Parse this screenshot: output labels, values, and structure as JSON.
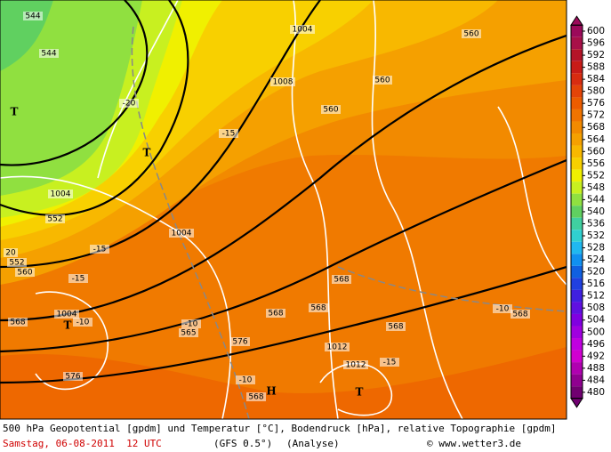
{
  "map": {
    "contour_labels": [
      "544",
      "544",
      "1004",
      "1008",
      "560",
      "560",
      "560",
      "-20",
      "-15",
      "T",
      "T",
      "1004",
      "552",
      "1004",
      "20",
      "552",
      "-15",
      "560",
      "-15",
      "568",
      "568",
      "1004",
      "-10",
      "T",
      "-10",
      "565",
      "568",
      "568",
      "568",
      "-10",
      "568",
      "576",
      "1012",
      "1012",
      "576",
      "-10",
      "568",
      "H",
      "T",
      "-15"
    ],
    "colorbar": {
      "levels": [
        {
          "value": 600,
          "color": "#9b0a5a"
        },
        {
          "value": 596,
          "color": "#a81048"
        },
        {
          "value": 592,
          "color": "#b41428"
        },
        {
          "value": 588,
          "color": "#c81c18"
        },
        {
          "value": 584,
          "color": "#d82c10"
        },
        {
          "value": 580,
          "color": "#e44408"
        },
        {
          "value": 576,
          "color": "#ec5c00"
        },
        {
          "value": 572,
          "color": "#f07400"
        },
        {
          "value": 568,
          "color": "#f28a00"
        },
        {
          "value": 564,
          "color": "#f5a000"
        },
        {
          "value": 560,
          "color": "#f8b800"
        },
        {
          "value": 556,
          "color": "#f8d000"
        },
        {
          "value": 552,
          "color": "#f0f000"
        },
        {
          "value": 548,
          "color": "#c8f020"
        },
        {
          "value": 544,
          "color": "#90e040"
        },
        {
          "value": 540,
          "color": "#60d060"
        },
        {
          "value": 536,
          "color": "#40d0a0"
        },
        {
          "value": 532,
          "color": "#30d0d0"
        },
        {
          "value": 528,
          "color": "#20b8f0"
        },
        {
          "value": 524,
          "color": "#1090f0"
        },
        {
          "value": 520,
          "color": "#1060e0"
        },
        {
          "value": 516,
          "color": "#2040e0"
        },
        {
          "value": 512,
          "color": "#4020e0"
        },
        {
          "value": 508,
          "color": "#6010e0"
        },
        {
          "value": 504,
          "color": "#8000e0"
        },
        {
          "value": 500,
          "color": "#a000e0"
        },
        {
          "value": 496,
          "color": "#c000e0"
        },
        {
          "value": 492,
          "color": "#d000d0"
        },
        {
          "value": 488,
          "color": "#b000b0"
        },
        {
          "value": 484,
          "color": "#900090"
        },
        {
          "value": 480,
          "color": "#700070"
        }
      ]
    }
  },
  "footer": {
    "description": "500 hPa Geopotential [gpdm] und Temperatur [°C], Bodendruck [hPa], relative Topographie [gpdm]",
    "date": "Samstag, 06-08-2011  12 UTC",
    "model": "(GFS 0.5°)",
    "run": "(Analyse)",
    "source": "© www.wetter3.de"
  }
}
